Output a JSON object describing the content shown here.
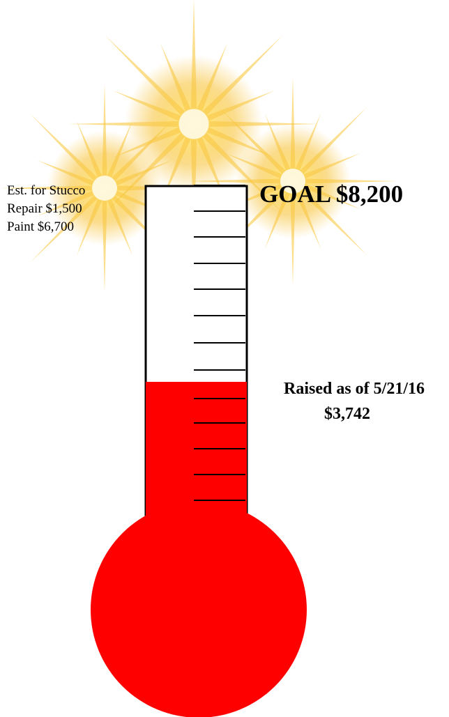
{
  "notes": [
    "Est. for Stucco",
    "Repair $1,500",
    "Paint $6,700"
  ],
  "goal": "GOAL $8,200",
  "raised": {
    "label": "Raised as of 5/21/16",
    "amount": "$3,742"
  }
}
